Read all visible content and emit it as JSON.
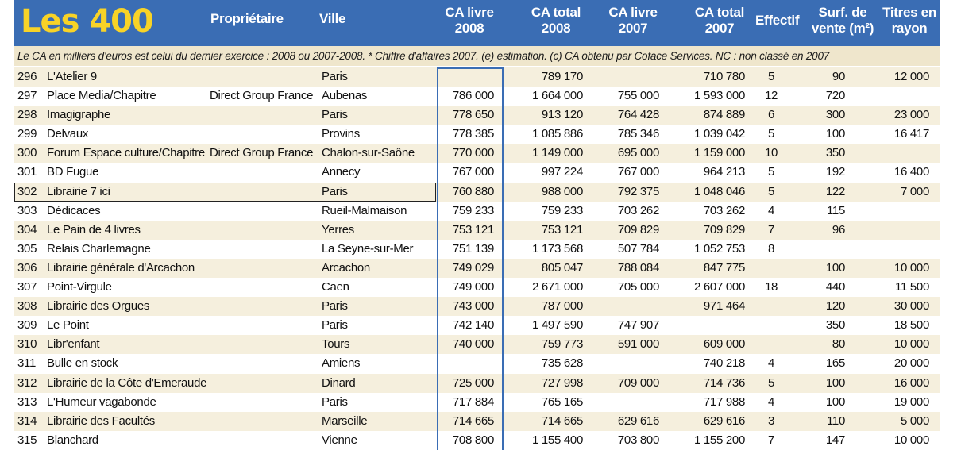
{
  "header": {
    "title": "Les 400",
    "columns": {
      "owner": "Propriétaire",
      "city": "Ville",
      "ca_livre_2008": [
        "CA livre",
        "2008"
      ],
      "ca_total_2008": [
        "CA total",
        "2008"
      ],
      "ca_livre_2007": [
        "CA livre",
        "2007"
      ],
      "ca_total_2007": [
        "CA total",
        "2007"
      ],
      "effectif": "Effectif",
      "surface": [
        "Surf. de",
        "vente (m²)"
      ],
      "titres": [
        "Titres en",
        "rayon"
      ]
    }
  },
  "note": "Le CA en milliers d'euros est celui du dernier exercice : 2008 ou 2007-2008.   * Chiffre d'affaires 2007.  (e) estimation. (c) CA obtenu par Coface Services. NC : non classé en 2007",
  "colors": {
    "header_bg": "#3a6db4",
    "title": "#f8d327",
    "note_bg": "#efe6cc",
    "row_alt": "#f5efdd",
    "highlight": "#3a6db4"
  },
  "rows": [
    {
      "rank": "296",
      "name": "L'Atelier 9",
      "owner": "",
      "city": "Paris",
      "ca_livre_2008": "",
      "ca_total_2008": "789 170",
      "ca_livre_2007": "",
      "ca_total_2007": "710 780",
      "effectif": "5",
      "surface": "90",
      "titres": "12 000"
    },
    {
      "rank": "297",
      "name": "Place Media/Chapitre",
      "owner": "Direct Group France",
      "city": "Aubenas",
      "ca_livre_2008": "786 000",
      "ca_total_2008": "1 664 000",
      "ca_livre_2007": "755 000",
      "ca_total_2007": "1 593 000",
      "effectif": "12",
      "surface": "720",
      "titres": ""
    },
    {
      "rank": "298",
      "name": "Imagigraphe",
      "owner": "",
      "city": "Paris",
      "ca_livre_2008": "778 650",
      "ca_total_2008": "913 120",
      "ca_livre_2007": "764 428",
      "ca_total_2007": "874 889",
      "effectif": "6",
      "surface": "300",
      "titres": "23 000"
    },
    {
      "rank": "299",
      "name": "Delvaux",
      "owner": "",
      "city": "Provins",
      "ca_livre_2008": "778 385",
      "ca_total_2008": "1 085 886",
      "ca_livre_2007": "785 346",
      "ca_total_2007": "1 039 042",
      "effectif": "5",
      "surface": "100",
      "titres": "16 417"
    },
    {
      "rank": "300",
      "name": "Forum Espace culture/Chapitre",
      "owner": "Direct Group France",
      "city": "Chalon-sur-Saône",
      "ca_livre_2008": "770 000",
      "ca_total_2008": "1 149 000",
      "ca_livre_2007": "695 000",
      "ca_total_2007": "1 159 000",
      "effectif": "10",
      "surface": "350",
      "titres": ""
    },
    {
      "rank": "301",
      "name": "BD Fugue",
      "owner": "",
      "city": "Annecy",
      "ca_livre_2008": "767 000",
      "ca_total_2008": "997 224",
      "ca_livre_2007": "767 000",
      "ca_total_2007": "964 213",
      "effectif": "5",
      "surface": "192",
      "titres": "16 400"
    },
    {
      "rank": "302",
      "name": "Librairie 7 ici",
      "owner": "",
      "city": "Paris",
      "ca_livre_2008": "760 880",
      "ca_total_2008": "988 000",
      "ca_livre_2007": "792 375",
      "ca_total_2007": "1 048 046",
      "effectif": "5",
      "surface": "122",
      "titres": "7 000"
    },
    {
      "rank": "303",
      "name": "Dédicaces",
      "owner": "",
      "city": "Rueil-Malmaison",
      "ca_livre_2008": "759 233",
      "ca_total_2008": "759 233",
      "ca_livre_2007": "703 262",
      "ca_total_2007": "703 262",
      "effectif": "4",
      "surface": "115",
      "titres": ""
    },
    {
      "rank": "304",
      "name": "Le Pain de 4 livres",
      "owner": "",
      "city": "Yerres",
      "ca_livre_2008": "753 121",
      "ca_total_2008": "753 121",
      "ca_livre_2007": "709 829",
      "ca_total_2007": "709 829",
      "effectif": "7",
      "surface": "96",
      "titres": ""
    },
    {
      "rank": "305",
      "name": "Relais Charlemagne",
      "owner": "",
      "city": "La Seyne-sur-Mer",
      "ca_livre_2008": "751 139",
      "ca_total_2008": "1 173 568",
      "ca_livre_2007": "507 784",
      "ca_total_2007": "1 052 753",
      "effectif": "8",
      "surface": "",
      "titres": ""
    },
    {
      "rank": "306",
      "name": "Librairie générale d'Arcachon",
      "owner": "",
      "city": "Arcachon",
      "ca_livre_2008": "749 029",
      "ca_total_2008": "805 047",
      "ca_livre_2007": "788 084",
      "ca_total_2007": "847 775",
      "effectif": "",
      "surface": "100",
      "titres": "10 000"
    },
    {
      "rank": "307",
      "name": "Point-Virgule",
      "owner": "",
      "city": "Caen",
      "ca_livre_2008": "749 000",
      "ca_total_2008": "2 671 000",
      "ca_livre_2007": "705 000",
      "ca_total_2007": "2 607 000",
      "effectif": "18",
      "surface": "440",
      "titres": "11 500"
    },
    {
      "rank": "308",
      "name": "Librairie des Orgues",
      "owner": "",
      "city": "Paris",
      "ca_livre_2008": "743 000",
      "ca_total_2008": "787 000",
      "ca_livre_2007": "",
      "ca_total_2007": "971 464",
      "effectif": "",
      "surface": "120",
      "titres": "30 000"
    },
    {
      "rank": "309",
      "name": "Le Point",
      "owner": "",
      "city": "Paris",
      "ca_livre_2008": "742 140",
      "ca_total_2008": "1 497 590",
      "ca_livre_2007": "747 907",
      "ca_total_2007": "",
      "effectif": "",
      "surface": "350",
      "titres": "18 500"
    },
    {
      "rank": "310",
      "name": "Libr'enfant",
      "owner": "",
      "city": "Tours",
      "ca_livre_2008": "740 000",
      "ca_total_2008": "759 773",
      "ca_livre_2007": "591 000",
      "ca_total_2007": "609 000",
      "effectif": "",
      "surface": "80",
      "titres": "10 000"
    },
    {
      "rank": "311",
      "name": "Bulle en stock",
      "owner": "",
      "city": "Amiens",
      "ca_livre_2008": "",
      "ca_total_2008": "735 628",
      "ca_livre_2007": "",
      "ca_total_2007": "740 218",
      "effectif": "4",
      "surface": "165",
      "titres": "20 000"
    },
    {
      "rank": "312",
      "name": "Librairie de la Côte d'Emeraude",
      "owner": "",
      "city": "Dinard",
      "ca_livre_2008": "725 000",
      "ca_total_2008": "727 998",
      "ca_livre_2007": "709 000",
      "ca_total_2007": "714 736",
      "effectif": "5",
      "surface": "100",
      "titres": "16 000"
    },
    {
      "rank": "313",
      "name": "L'Humeur vagabonde",
      "owner": "",
      "city": "Paris",
      "ca_livre_2008": "717 884",
      "ca_total_2008": "765 165",
      "ca_livre_2007": "",
      "ca_total_2007": "717 988",
      "effectif": "4",
      "surface": "100",
      "titres": "19 000"
    },
    {
      "rank": "314",
      "name": "Librairie des Facultés",
      "owner": "",
      "city": "Marseille",
      "ca_livre_2008": "714 665",
      "ca_total_2008": "714 665",
      "ca_livre_2007": "629 616",
      "ca_total_2007": "629 616",
      "effectif": "3",
      "surface": "110",
      "titres": "5 000"
    },
    {
      "rank": "315",
      "name": "Blanchard",
      "owner": "",
      "city": "Vienne",
      "ca_livre_2008": "708 800",
      "ca_total_2008": "1 155 400",
      "ca_livre_2007": "703 800",
      "ca_total_2007": "1 155 200",
      "effectif": "7",
      "surface": "147",
      "titres": "10 000"
    }
  ]
}
